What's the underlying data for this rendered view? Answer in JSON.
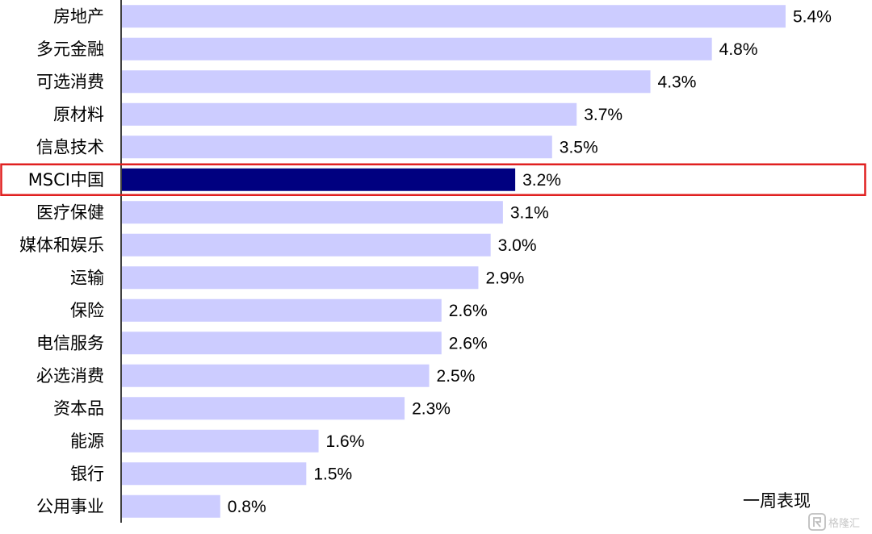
{
  "chart_data": {
    "type": "bar",
    "orientation": "horizontal",
    "categories": [
      "房地产",
      "多元金融",
      "可选消费",
      "原材料",
      "信息技术",
      "MSCI中国",
      "医疗保健",
      "媒体和娱乐",
      "运输",
      "保险",
      "电信服务",
      "必选消费",
      "资本品",
      "能源",
      "银行",
      "公用事业"
    ],
    "values": [
      5.4,
      4.8,
      4.3,
      3.7,
      3.5,
      3.2,
      3.1,
      3.0,
      2.9,
      2.6,
      2.6,
      2.5,
      2.3,
      1.6,
      1.5,
      0.8
    ],
    "value_labels": [
      "5.4%",
      "4.8%",
      "4.3%",
      "3.7%",
      "3.5%",
      "3.2%",
      "3.1%",
      "3.0%",
      "2.9%",
      "2.6%",
      "2.6%",
      "2.5%",
      "2.3%",
      "1.6%",
      "1.5%",
      "0.8%"
    ],
    "highlight_category": "MSCI中国",
    "xlim": [
      0,
      5.4
    ],
    "grid": false,
    "legend": {
      "label": "一周表现",
      "placement": "bottom-right"
    },
    "colors": {
      "bar": "#ccccff",
      "highlight_bar": "#000080",
      "highlight_box": "#e02020",
      "axis": "#000000"
    }
  },
  "watermark": {
    "text": "格隆汇",
    "icon": "gelonghui-logo-icon"
  }
}
